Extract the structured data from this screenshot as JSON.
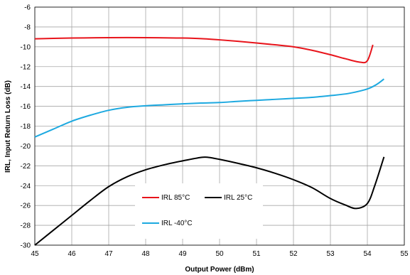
{
  "chart_data": {
    "type": "line",
    "xlabel": "Output Power (dBm)",
    "ylabel": "IRL, Input Return Loss (dB)",
    "xlim": [
      45,
      55
    ],
    "ylim": [
      -30,
      -6
    ],
    "xticks": [
      45,
      46,
      47,
      48,
      49,
      50,
      51,
      52,
      53,
      54,
      55
    ],
    "yticks": [
      -30,
      -28,
      -26,
      -24,
      -22,
      -20,
      -18,
      -16,
      -14,
      -12,
      -10,
      -8,
      -6
    ],
    "grid": true,
    "legend_position": "inside-lower-center",
    "series": [
      {
        "name": "IRL 85°C",
        "color": "#e8141b",
        "x": [
          45,
          45.5,
          46,
          46.5,
          47,
          47.5,
          48,
          48.5,
          49,
          49.5,
          50,
          50.5,
          51,
          51.5,
          52,
          52.5,
          53,
          53.4,
          53.8,
          54.0,
          54.15
        ],
        "y": [
          -9.2,
          -9.15,
          -9.12,
          -9.1,
          -9.08,
          -9.07,
          -9.08,
          -9.1,
          -9.12,
          -9.18,
          -9.3,
          -9.45,
          -9.62,
          -9.8,
          -10.0,
          -10.35,
          -10.8,
          -11.2,
          -11.55,
          -11.4,
          -9.8
        ]
      },
      {
        "name": "IRL 25°C",
        "color": "#000000",
        "x": [
          45,
          45.5,
          46,
          46.5,
          47,
          47.5,
          48,
          48.5,
          49,
          49.5,
          49.7,
          50,
          50.5,
          51,
          51.5,
          52,
          52.5,
          53,
          53.4,
          53.7,
          54.0,
          54.2,
          54.45
        ],
        "y": [
          -30,
          -28.5,
          -27,
          -25.5,
          -24.1,
          -23.1,
          -22.4,
          -21.9,
          -21.5,
          -21.15,
          -21.15,
          -21.35,
          -21.75,
          -22.2,
          -22.75,
          -23.4,
          -24.2,
          -25.3,
          -25.95,
          -26.3,
          -25.8,
          -24.0,
          -21.1
        ]
      },
      {
        "name": "IRL -40°C",
        "color": "#1da9e0",
        "x": [
          45,
          45.5,
          46,
          46.5,
          47,
          47.5,
          48,
          48.5,
          49,
          49.5,
          50,
          50.5,
          51,
          51.5,
          52,
          52.5,
          53,
          53.5,
          54,
          54.25,
          54.45
        ],
        "y": [
          -19.1,
          -18.3,
          -17.5,
          -16.9,
          -16.4,
          -16.1,
          -15.95,
          -15.85,
          -15.75,
          -15.67,
          -15.62,
          -15.5,
          -15.4,
          -15.3,
          -15.2,
          -15.1,
          -14.92,
          -14.7,
          -14.25,
          -13.8,
          -13.25
        ]
      }
    ]
  }
}
